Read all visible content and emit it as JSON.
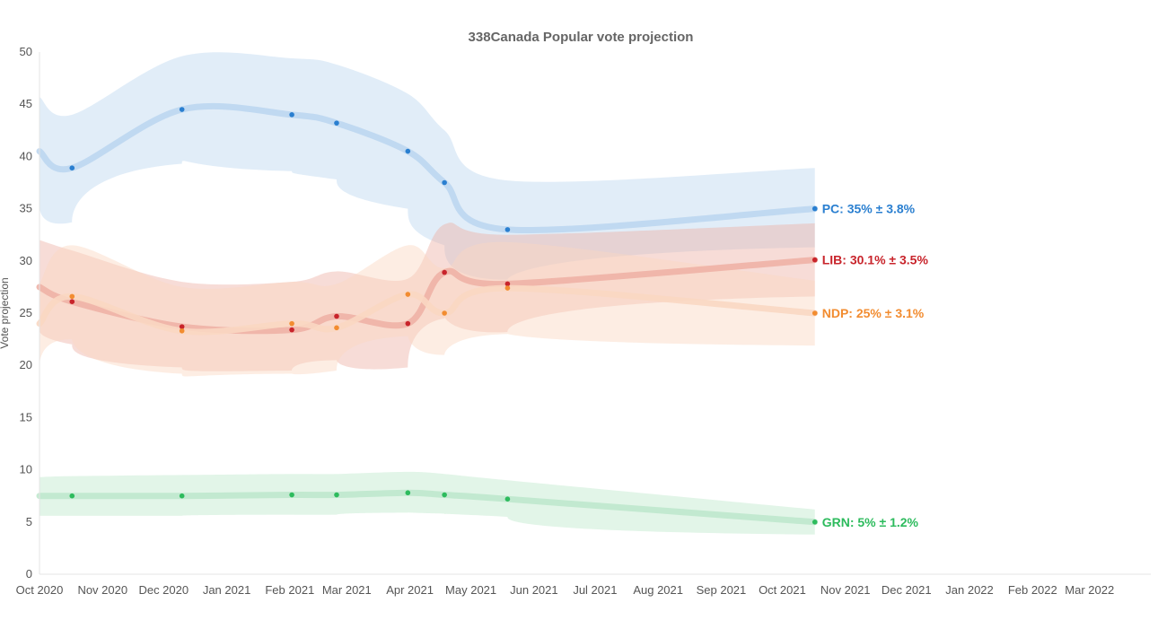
{
  "chart_data": {
    "type": "line",
    "title": "338Canada Popular vote projection",
    "xlabel": "",
    "ylabel": "Vote projection",
    "ylim": [
      0,
      50
    ],
    "yticks": [
      0,
      5,
      10,
      15,
      20,
      25,
      30,
      35,
      40,
      45,
      50
    ],
    "xlim": [
      "2020-10-01",
      "2022-03-31"
    ],
    "xticks": [
      {
        "date": "2020-10-01",
        "label": "Oct 2020"
      },
      {
        "date": "2020-11-01",
        "label": "Nov 2020"
      },
      {
        "date": "2020-12-01",
        "label": "Dec 2020"
      },
      {
        "date": "2021-01-01",
        "label": "Jan 2021"
      },
      {
        "date": "2021-02-01",
        "label": "Feb 2021"
      },
      {
        "date": "2021-03-01",
        "label": "Mar 2021"
      },
      {
        "date": "2021-04-01",
        "label": "Apr 2021"
      },
      {
        "date": "2021-05-01",
        "label": "May 2021"
      },
      {
        "date": "2021-06-01",
        "label": "Jun 2021"
      },
      {
        "date": "2021-07-01",
        "label": "Jul 2021"
      },
      {
        "date": "2021-08-01",
        "label": "Aug 2021"
      },
      {
        "date": "2021-09-01",
        "label": "Sep 2021"
      },
      {
        "date": "2021-10-01",
        "label": "Oct 2021"
      },
      {
        "date": "2021-11-01",
        "label": "Nov 2021"
      },
      {
        "date": "2021-12-01",
        "label": "Dec 2021"
      },
      {
        "date": "2022-01-01",
        "label": "Jan 2022"
      },
      {
        "date": "2022-02-01",
        "label": "Feb 2022"
      },
      {
        "date": "2022-03-01",
        "label": "Mar 2022"
      }
    ],
    "grid": false,
    "x": [
      "2020-10-01",
      "2020-10-17",
      "2020-12-10",
      "2021-02-02",
      "2021-02-24",
      "2021-03-31",
      "2021-04-18",
      "2021-05-19",
      "2021-10-17"
    ],
    "first_point_is_band_start_only": true,
    "series": [
      {
        "name": "PC",
        "color": "#2a7fd0",
        "band_color": "#bcd6f0",
        "values": [
          40.5,
          38.9,
          44.5,
          44.0,
          43.2,
          40.5,
          37.5,
          33.0,
          35.0
        ],
        "lower": [
          35.3,
          33.7,
          39.3,
          38.6,
          37.8,
          35.0,
          31.5,
          28.2,
          31.3
        ],
        "upper": [
          45.7,
          44.0,
          49.6,
          49.4,
          48.8,
          46.0,
          42.5,
          37.7,
          38.9
        ],
        "end_label": "PC: 35% ± 3.8%"
      },
      {
        "name": "LIB",
        "color": "#c8242b",
        "band_color": "#eeb1a6",
        "values": [
          27.5,
          26.1,
          23.7,
          23.4,
          24.7,
          24.0,
          28.9,
          27.8,
          30.1
        ],
        "lower": [
          23.4,
          22.0,
          19.8,
          19.5,
          20.5,
          19.8,
          24.5,
          23.2,
          26.6
        ],
        "upper": [
          32.0,
          31.0,
          28.0,
          28.0,
          29.0,
          28.3,
          33.5,
          32.5,
          33.6
        ],
        "end_label": "LIB: 30.1% ± 3.5%"
      },
      {
        "name": "NDP",
        "color": "#f28c30",
        "band_color": "#fad7c2",
        "values": [
          24.0,
          26.6,
          23.3,
          24.0,
          23.6,
          26.8,
          25.0,
          27.4,
          25.0
        ],
        "lower": [
          19.8,
          22.5,
          19.2,
          19.2,
          19.5,
          22.8,
          21.0,
          23.0,
          21.9
        ],
        "upper": [
          27.8,
          31.5,
          27.5,
          28.0,
          27.8,
          31.5,
          29.3,
          31.8,
          28.1
        ],
        "end_label": "NDP: 25% ± 3.1%"
      },
      {
        "name": "GRN",
        "color": "#2dbb5d",
        "band_color": "#bfe8cd",
        "values": [
          7.5,
          7.5,
          7.5,
          7.6,
          7.6,
          7.8,
          7.6,
          7.2,
          5.0
        ],
        "lower": [
          5.6,
          5.6,
          5.6,
          5.7,
          5.7,
          5.9,
          5.8,
          5.5,
          3.8
        ],
        "upper": [
          9.3,
          9.4,
          9.5,
          9.6,
          9.6,
          9.8,
          9.6,
          9.0,
          6.2
        ],
        "end_label": "GRN: 5% ± 1.2%"
      }
    ]
  }
}
